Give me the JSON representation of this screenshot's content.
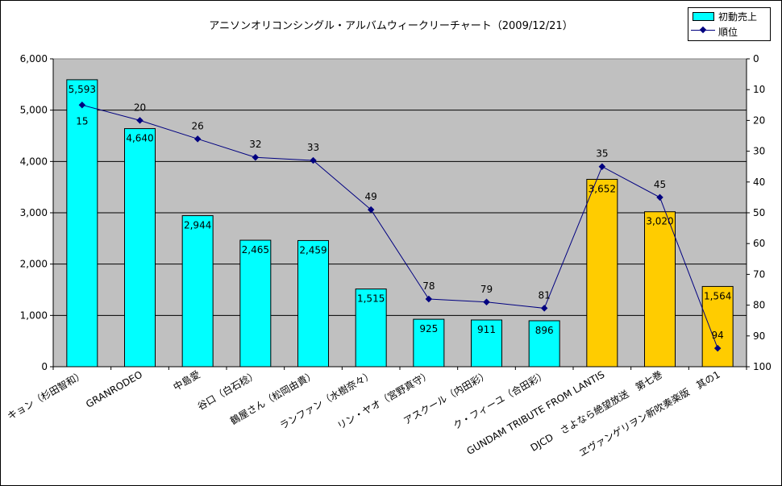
{
  "chart_data": {
    "type": "bar",
    "title": "アニソンオリコンシングル・アルバムウィークリーチャート（2009/12/21）",
    "categories": [
      "キョン（杉田智和）",
      "GRANRODEO",
      "中島愛",
      "谷口（白石稔）",
      "鶴屋さん（松岡由貴）",
      "ランファン（水樹奈々）",
      "リン・ヤオ（宮野真守）",
      "アスクール（内田彩）",
      "ク・フィーユ（合田彩）",
      "GUNDAM TRIBUTE FROM LANTIS",
      "DJCD　さよなら絶望放送　第七巻",
      "ヱヴァンゲリヲン新吹奏楽版　其の1"
    ],
    "series": [
      {
        "name": "初動売上",
        "type": "bar",
        "axis": "left",
        "values": [
          5593,
          4640,
          2944,
          2465,
          2459,
          1515,
          925,
          911,
          896,
          3652,
          3020,
          1564
        ],
        "labels": [
          "5,593",
          "4,640",
          "2,944",
          "2,465",
          "2,459",
          "1,515",
          "925",
          "911",
          "896",
          "3,652",
          "3,020",
          "1,564"
        ],
        "bar_colors": [
          "#00ffff",
          "#00ffff",
          "#00ffff",
          "#00ffff",
          "#00ffff",
          "#00ffff",
          "#00ffff",
          "#00ffff",
          "#00ffff",
          "#ffcc00",
          "#ffcc00",
          "#ffcc00"
        ]
      },
      {
        "name": "順位",
        "type": "line",
        "axis": "right",
        "values": [
          15,
          20,
          26,
          32,
          33,
          49,
          78,
          79,
          81,
          35,
          45,
          94
        ],
        "color": "#000080"
      }
    ],
    "y_left": {
      "range": [
        0,
        6000
      ],
      "ticks": [
        "0",
        "1,000",
        "2,000",
        "3,000",
        "4,000",
        "5,000",
        "6,000"
      ]
    },
    "y_right": {
      "range": [
        0,
        100
      ],
      "reversed": true,
      "ticks": [
        "0",
        "10",
        "20",
        "30",
        "40",
        "50",
        "60",
        "70",
        "80",
        "90",
        "100"
      ]
    },
    "plot_background": "#c0c0c0",
    "gridlines": true,
    "legend_position": "top-right",
    "legend": [
      "初動売上",
      "順位"
    ]
  }
}
